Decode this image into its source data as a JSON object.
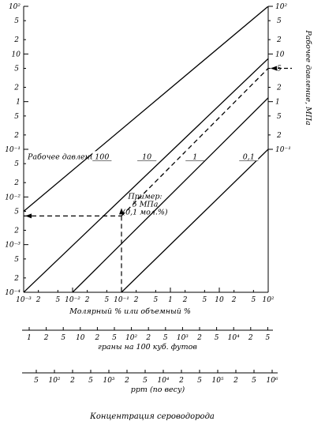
{
  "chart_data": {
    "type": "line",
    "xscale": "log",
    "yscale": "log",
    "x_axis": {
      "label": "Молярный % или объемный %",
      "range": [
        0.001,
        100
      ],
      "decade_labels": [
        "10⁻³",
        "10⁻²",
        "10⁻¹",
        "1",
        "10",
        "10²"
      ],
      "minor_labels": [
        "2",
        "5"
      ]
    },
    "y_axis_left": {
      "range": [
        0.0001,
        100
      ],
      "decade_labels": [
        "10⁻⁴",
        "10⁻³",
        "10⁻²",
        "10⁻¹",
        "1",
        "10",
        "10²"
      ],
      "minor_labels": [
        "2",
        "5"
      ]
    },
    "y_axis_right": {
      "label": "Рабочее давление, МПа",
      "range": [
        0.1,
        100
      ],
      "decade_labels": [
        "10⁻¹",
        "1",
        "10",
        "10²"
      ],
      "minor_labels": [
        "2",
        "5"
      ]
    },
    "secondary_scales": [
      {
        "label": "граны на 100 куб. футов",
        "ticks": [
          "1",
          "2",
          "5",
          "10",
          "2",
          "5",
          "10²",
          "2",
          "5",
          "10³",
          "2",
          "5",
          "10⁴",
          "2",
          "5"
        ]
      },
      {
        "label": "ppm (по весу)",
        "ticks": [
          "5",
          "10²",
          "2",
          "5",
          "10³",
          "2",
          "5",
          "10⁴",
          "2",
          "5",
          "10⁵",
          "2",
          "5",
          "10⁶"
        ]
      }
    ],
    "footer_title": "Концентрация сероводорода",
    "series_label_prefix": "Рабочее давление –",
    "series": [
      {
        "name": "100",
        "style": "solid",
        "x": [
          0.001,
          100
        ],
        "y": [
          0.005,
          100
        ]
      },
      {
        "name": "10",
        "style": "solid",
        "x": [
          0.001,
          100
        ],
        "y": [
          0.0001,
          8
        ]
      },
      {
        "name": "1",
        "style": "solid",
        "x": [
          0.01,
          100
        ],
        "y": [
          0.0001,
          1.2
        ]
      },
      {
        "name": "0.1",
        "style": "solid",
        "x": [
          0.1,
          100
        ],
        "y": [
          0.0001,
          0.1
        ]
      },
      {
        "name": "",
        "style": "dashed",
        "x": [
          0.1,
          100
        ],
        "y": [
          0.004,
          5
        ]
      }
    ],
    "series_labels": [
      "100",
      "10",
      "1",
      "0,1"
    ],
    "annotation": {
      "text": [
        "Пример:",
        "5 МПа",
        "(0,1 мол.%)"
      ],
      "x": 0.1,
      "y": 0.004,
      "pressure": 5
    },
    "grid": false
  }
}
